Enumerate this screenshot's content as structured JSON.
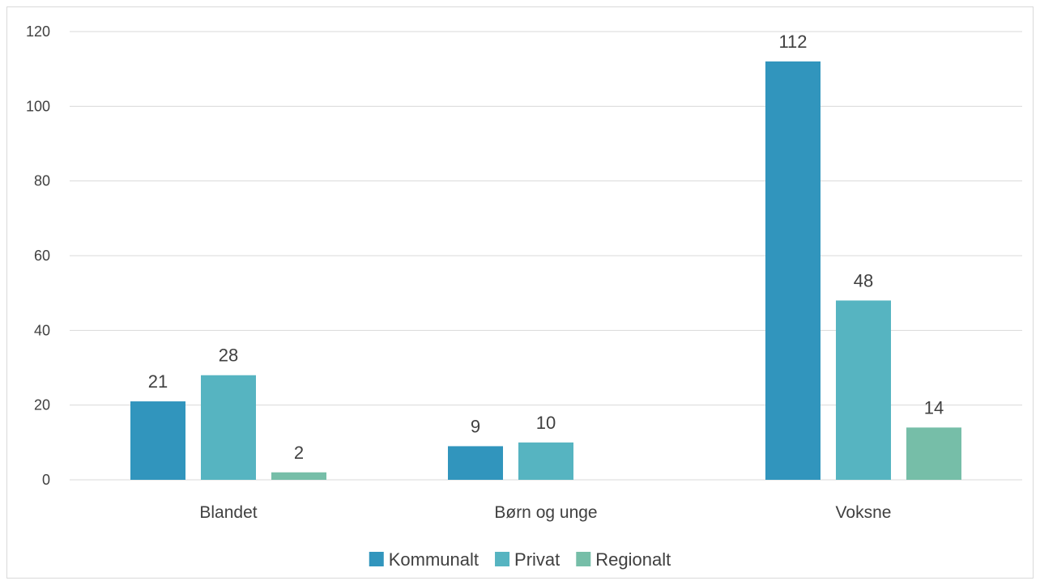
{
  "chart_data": {
    "type": "bar",
    "title": "",
    "xlabel": "",
    "ylabel": "",
    "categories": [
      "Blandet",
      "Børn og unge",
      "Voksne"
    ],
    "series": [
      {
        "name": "Kommunalt",
        "color": "#3195bd",
        "values": [
          21,
          9,
          112
        ]
      },
      {
        "name": "Privat",
        "color": "#56b4c1",
        "values": [
          28,
          10,
          48
        ]
      },
      {
        "name": "Regionalt",
        "color": "#76bea8",
        "values": [
          2,
          null,
          14
        ]
      }
    ],
    "ylim": [
      0,
      120
    ],
    "yticks": [
      0,
      20,
      40,
      60,
      80,
      100,
      120
    ],
    "grid": true,
    "data_labels": true,
    "legend_position": "bottom"
  }
}
